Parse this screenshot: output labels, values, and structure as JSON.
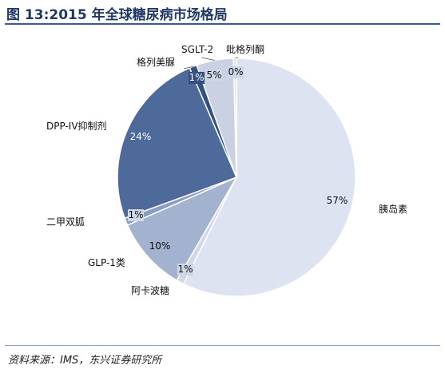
{
  "title": "图 13:2015 年全球糖尿病市场格局",
  "source": "资料来源：IMS，东兴证券研究所",
  "chart_data": {
    "type": "pie",
    "start_angle_deg": 0,
    "direction": "clockwise",
    "slices": [
      {
        "name": "胰岛素",
        "value": 57,
        "label": "57%",
        "color": "#dde3f0"
      },
      {
        "name": "阿卡波糖",
        "value": 1,
        "label": "1%",
        "color": "#d0d8e8"
      },
      {
        "name": "GLP-1类",
        "value": 10,
        "label": "10%",
        "color": "#a2b2cf"
      },
      {
        "name": "二甲双胍",
        "value": 1,
        "label": "1%",
        "color": "#8a9dc2"
      },
      {
        "name": "DPP-IV抑制剂",
        "value": 24,
        "label": "24%",
        "color": "#4d6a9a"
      },
      {
        "name": "格列美脲",
        "value": 1,
        "label": "1%",
        "color": "#35507f"
      },
      {
        "name": "SGLT-2",
        "value": 5,
        "label": "5%",
        "color": "#c9d1e2"
      },
      {
        "name": "吡格列酮",
        "value": 0.4,
        "label": "0%",
        "color": "#dde3f0"
      }
    ],
    "legend": "none"
  }
}
